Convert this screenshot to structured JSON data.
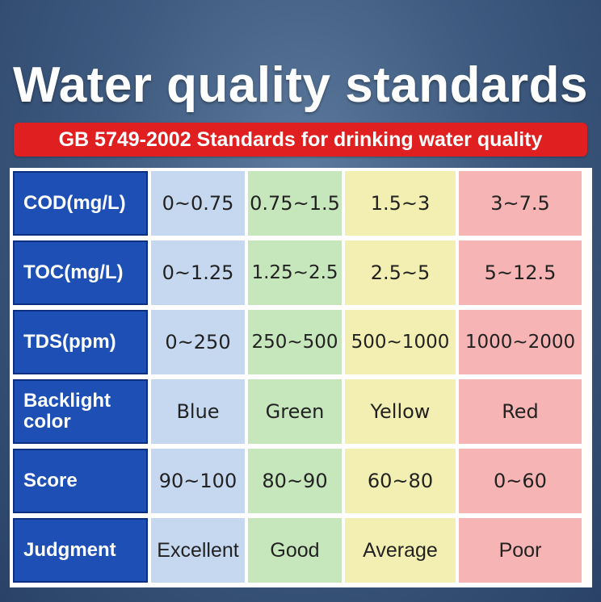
{
  "title": "Water quality standards",
  "subtitle": "GB 5749-2002 Standards for drinking water quality",
  "rows": [
    {
      "label": "COD(mg/L)",
      "values": [
        "0~0.75",
        "0.75~1.5",
        "1.5~3",
        "3~7.5"
      ]
    },
    {
      "label": "TOC(mg/L)",
      "values": [
        "0~1.25",
        "1.25~2.5",
        "2.5~5",
        "5~12.5"
      ]
    },
    {
      "label": "TDS(ppm)",
      "values": [
        "0~250",
        "250~500",
        "500~1000",
        "1000~2000"
      ]
    },
    {
      "label": "Backlight color",
      "values": [
        "Blue",
        "Green",
        "Yellow",
        "Red"
      ]
    },
    {
      "label": "Score",
      "values": [
        "90~100",
        "80~90",
        "60~80",
        "0~60"
      ]
    },
    {
      "label": "Judgment",
      "values": [
        "Excellent",
        "Good",
        "Average",
        "Poor"
      ]
    }
  ],
  "colors": {
    "header_blue": "#1d4fb5",
    "col_blue": "#c6d8f0",
    "col_green": "#c6e6bc",
    "col_yellow": "#f3efb2",
    "col_red": "#f6b4b4",
    "subtitle_red": "#e02020"
  }
}
